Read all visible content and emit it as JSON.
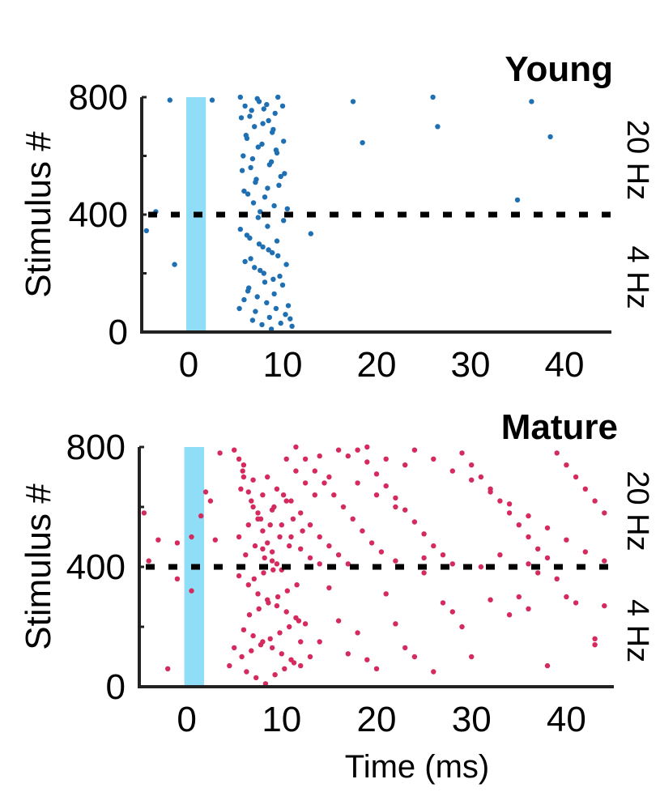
{
  "chart_data": [
    {
      "type": "scatter",
      "title": "Young",
      "xlabel": "",
      "ylabel": "Stimulus #",
      "xlim": [
        -5,
        45
      ],
      "ylim": [
        0,
        800
      ],
      "xticks": [
        0,
        10,
        20,
        30,
        40
      ],
      "yticks": [
        0,
        400,
        800
      ],
      "right_labels": [
        "20 Hz",
        "4 Hz"
      ],
      "stimulus_window": [
        0,
        2
      ],
      "stimulus_color": "#8FDDF7",
      "divider_y": 400,
      "point_color": "#1F6FB3",
      "points": [
        [
          -2,
          790
        ],
        [
          2.5,
          790
        ],
        [
          17.5,
          785
        ],
        [
          26,
          800
        ],
        [
          36.5,
          785
        ],
        [
          26.5,
          700
        ],
        [
          18.5,
          645
        ],
        [
          38.5,
          665
        ],
        [
          35,
          450
        ],
        [
          -4.5,
          345
        ],
        [
          -3.5,
          410
        ],
        [
          -1.5,
          230
        ],
        [
          13,
          335
        ],
        [
          5.5,
          800
        ],
        [
          6,
          770
        ],
        [
          6.5,
          735
        ],
        [
          7,
          700
        ],
        [
          7.5,
          785
        ],
        [
          8,
          760
        ],
        [
          8.5,
          720
        ],
        [
          9,
          690
        ],
        [
          9.5,
          800
        ],
        [
          10,
          770
        ],
        [
          6.2,
          660
        ],
        [
          7.8,
          640
        ],
        [
          9.3,
          620
        ],
        [
          5.8,
          600
        ],
        [
          8.8,
          580
        ],
        [
          6.6,
          560
        ],
        [
          10.2,
          540
        ],
        [
          7.2,
          520
        ],
        [
          9.6,
          500
        ],
        [
          5.9,
          480
        ],
        [
          8.1,
          460
        ],
        [
          6.9,
          440
        ],
        [
          10.5,
          420
        ],
        [
          7.6,
          410
        ],
        [
          9.1,
          430
        ],
        [
          6.3,
          470
        ],
        [
          8.4,
          490
        ],
        [
          7.1,
          510
        ],
        [
          9.8,
          530
        ],
        [
          5.7,
          550
        ],
        [
          8.6,
          570
        ],
        [
          6.8,
          590
        ],
        [
          9.4,
          610
        ],
        [
          7.4,
          630
        ],
        [
          10.1,
          650
        ],
        [
          6.1,
          670
        ],
        [
          8.9,
          680
        ],
        [
          7.9,
          710
        ],
        [
          5.6,
          730
        ],
        [
          9.2,
          745
        ],
        [
          6.7,
          755
        ],
        [
          8.3,
          775
        ],
        [
          7.3,
          795
        ],
        [
          5.5,
          350
        ],
        [
          6.5,
          320
        ],
        [
          7.5,
          300
        ],
        [
          8.5,
          280
        ],
        [
          9.5,
          260
        ],
        [
          6,
          240
        ],
        [
          7,
          220
        ],
        [
          8,
          200
        ],
        [
          9,
          180
        ],
        [
          10,
          160
        ],
        [
          6.3,
          140
        ],
        [
          7.3,
          120
        ],
        [
          8.3,
          100
        ],
        [
          9.3,
          80
        ],
        [
          10.3,
          60
        ],
        [
          6.8,
          40
        ],
        [
          7.8,
          25
        ],
        [
          8.8,
          10
        ],
        [
          9.8,
          30
        ],
        [
          5.9,
          110
        ],
        [
          10.6,
          90
        ],
        [
          7.1,
          70
        ],
        [
          8.6,
          50
        ],
        [
          9.1,
          130
        ],
        [
          6.4,
          150
        ],
        [
          8.1,
          170
        ],
        [
          9.7,
          190
        ],
        [
          7.6,
          210
        ],
        [
          10.4,
          230
        ],
        [
          6.6,
          250
        ],
        [
          8.9,
          270
        ],
        [
          7.9,
          290
        ],
        [
          9.4,
          310
        ],
        [
          6.2,
          330
        ],
        [
          8.4,
          360
        ],
        [
          10.1,
          380
        ],
        [
          7.4,
          390
        ],
        [
          11,
          20
        ],
        [
          10.8,
          45
        ],
        [
          5.4,
          80
        ]
      ]
    },
    {
      "type": "scatter",
      "title": "Mature",
      "xlabel": "Time (ms)",
      "ylabel": "Stimulus #",
      "xlim": [
        -5,
        45
      ],
      "ylim": [
        0,
        800
      ],
      "xticks": [
        0,
        10,
        20,
        30,
        40
      ],
      "yticks": [
        0,
        400,
        800
      ],
      "right_labels": [
        "20 Hz",
        "4 Hz"
      ],
      "stimulus_window": [
        0,
        2
      ],
      "stimulus_color": "#8FDDF7",
      "divider_y": 400,
      "point_color": "#D42A5E",
      "points": [
        [
          -4.5,
          580
        ],
        [
          -3,
          490
        ],
        [
          -1,
          480
        ],
        [
          0.5,
          500
        ],
        [
          1.5,
          570
        ],
        [
          2,
          650
        ],
        [
          2.5,
          620
        ],
        [
          3,
          490
        ],
        [
          -4,
          420
        ],
        [
          0.5,
          320
        ],
        [
          -2,
          60
        ],
        [
          -1,
          360
        ],
        [
          3.5,
          780
        ],
        [
          5,
          790
        ],
        [
          5.5,
          760
        ],
        [
          6,
          700
        ],
        [
          6.5,
          650
        ],
        [
          7,
          600
        ],
        [
          7.5,
          560
        ],
        [
          8,
          520
        ],
        [
          8.5,
          480
        ],
        [
          9,
          450
        ],
        [
          9.5,
          410
        ],
        [
          10,
          390
        ],
        [
          6,
          740
        ],
        [
          7,
          690
        ],
        [
          8,
          640
        ],
        [
          9,
          590
        ],
        [
          10,
          540
        ],
        [
          11,
          500
        ],
        [
          12,
          460
        ],
        [
          13,
          430
        ],
        [
          14,
          410
        ],
        [
          11.5,
          800
        ],
        [
          12.5,
          760
        ],
        [
          13.5,
          720
        ],
        [
          14.5,
          680
        ],
        [
          15.5,
          640
        ],
        [
          16.5,
          600
        ],
        [
          17.5,
          560
        ],
        [
          18.5,
          520
        ],
        [
          19.5,
          480
        ],
        [
          20.5,
          450
        ],
        [
          11,
          620
        ],
        [
          12,
          580
        ],
        [
          13,
          540
        ],
        [
          14,
          500
        ],
        [
          15,
          470
        ],
        [
          16,
          440
        ],
        [
          17,
          410
        ],
        [
          18,
          790
        ],
        [
          19,
          750
        ],
        [
          20,
          710
        ],
        [
          21,
          670
        ],
        [
          22,
          630
        ],
        [
          23,
          590
        ],
        [
          24,
          550
        ],
        [
          25,
          510
        ],
        [
          26,
          470
        ],
        [
          27,
          440
        ],
        [
          28,
          410
        ],
        [
          29,
          780
        ],
        [
          30,
          740
        ],
        [
          31,
          700
        ],
        [
          32,
          660
        ],
        [
          33,
          620
        ],
        [
          34,
          580
        ],
        [
          35,
          540
        ],
        [
          36,
          500
        ],
        [
          37,
          460
        ],
        [
          38,
          430
        ],
        [
          39,
          780
        ],
        [
          40,
          740
        ],
        [
          41,
          700
        ],
        [
          42,
          660
        ],
        [
          43,
          620
        ],
        [
          44,
          580
        ],
        [
          24,
          790
        ],
        [
          26,
          760
        ],
        [
          28,
          720
        ],
        [
          30,
          690
        ],
        [
          32,
          650
        ],
        [
          34,
          610
        ],
        [
          36,
          570
        ],
        [
          38,
          530
        ],
        [
          40,
          490
        ],
        [
          42,
          450
        ],
        [
          44,
          420
        ],
        [
          22,
          420
        ],
        [
          25,
          430
        ],
        [
          33,
          440
        ],
        [
          36,
          410
        ],
        [
          16,
          790
        ],
        [
          17,
          770
        ],
        [
          14,
          770
        ],
        [
          19,
          800
        ],
        [
          21,
          760
        ],
        [
          23,
          740
        ],
        [
          15,
          700
        ],
        [
          18,
          680
        ],
        [
          20,
          640
        ],
        [
          22,
          600
        ],
        [
          8.5,
          700
        ],
        [
          9.5,
          660
        ],
        [
          10.5,
          620
        ],
        [
          7.5,
          580
        ],
        [
          6.5,
          540
        ],
        [
          5.5,
          500
        ],
        [
          8,
          460
        ],
        [
          9,
          420
        ],
        [
          10.5,
          760
        ],
        [
          11.5,
          720
        ],
        [
          12.5,
          680
        ],
        [
          13.5,
          640
        ],
        [
          5.7,
          660
        ],
        [
          6.8,
          620
        ],
        [
          7.8,
          560
        ],
        [
          8.8,
          540
        ],
        [
          9.8,
          500
        ],
        [
          10.8,
          470
        ],
        [
          6.2,
          440
        ],
        [
          7.2,
          470
        ],
        [
          8.2,
          430
        ],
        [
          9.2,
          600
        ],
        [
          10.2,
          640
        ],
        [
          11.2,
          560
        ],
        [
          5.9,
          720
        ],
        [
          12.2,
          520
        ],
        [
          5.5,
          370
        ],
        [
          6.5,
          340
        ],
        [
          7.5,
          310
        ],
        [
          8.5,
          290
        ],
        [
          9.5,
          270
        ],
        [
          10.5,
          250
        ],
        [
          11.5,
          230
        ],
        [
          12.5,
          210
        ],
        [
          6,
          190
        ],
        [
          7,
          170
        ],
        [
          8,
          150
        ],
        [
          9,
          130
        ],
        [
          10,
          110
        ],
        [
          11,
          90
        ],
        [
          12,
          70
        ],
        [
          6.3,
          50
        ],
        [
          7.3,
          30
        ],
        [
          8.3,
          10
        ],
        [
          9.3,
          40
        ],
        [
          10.3,
          60
        ],
        [
          11.3,
          80
        ],
        [
          5.8,
          100
        ],
        [
          6.8,
          120
        ],
        [
          7.8,
          140
        ],
        [
          8.8,
          160
        ],
        [
          9.8,
          180
        ],
        [
          10.8,
          200
        ],
        [
          11.8,
          220
        ],
        [
          6.6,
          240
        ],
        [
          7.6,
          260
        ],
        [
          8.6,
          280
        ],
        [
          9.6,
          300
        ],
        [
          10.6,
          320
        ],
        [
          11.6,
          340
        ],
        [
          7.1,
          360
        ],
        [
          8.1,
          380
        ],
        [
          9.1,
          390
        ],
        [
          4.5,
          70
        ],
        [
          5,
          130
        ],
        [
          13,
          100
        ],
        [
          12,
          150
        ],
        [
          16,
          220
        ],
        [
          15,
          330
        ],
        [
          19,
          90
        ],
        [
          20,
          60
        ],
        [
          23,
          130
        ],
        [
          24,
          100
        ],
        [
          26,
          50
        ],
        [
          27,
          280
        ],
        [
          29,
          200
        ],
        [
          30,
          100
        ],
        [
          32,
          290
        ],
        [
          34,
          240
        ],
        [
          35,
          300
        ],
        [
          36,
          260
        ],
        [
          38,
          70
        ],
        [
          40,
          300
        ],
        [
          41,
          280
        ],
        [
          44,
          270
        ],
        [
          43,
          160
        ],
        [
          43,
          140
        ],
        [
          17,
          110
        ],
        [
          21,
          310
        ],
        [
          25,
          380
        ],
        [
          31,
          400
        ],
        [
          37,
          380
        ],
        [
          39,
          360
        ],
        [
          14,
          150
        ],
        [
          18,
          180
        ],
        [
          22,
          210
        ],
        [
          28,
          250
        ]
      ]
    }
  ]
}
